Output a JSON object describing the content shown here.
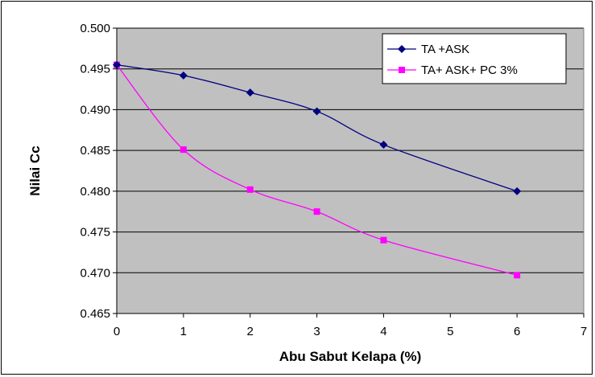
{
  "chart_data": {
    "type": "line",
    "title": "",
    "xlabel": "Abu Sabut Kelapa (%)",
    "ylabel": "Nilai Cc",
    "xlim": [
      0,
      7
    ],
    "ylim": [
      0.465,
      0.5
    ],
    "x_ticks": [
      "0",
      "1",
      "2",
      "3",
      "4",
      "5",
      "6",
      "7"
    ],
    "y_ticks": [
      "0.465",
      "0.470",
      "0.475",
      "0.480",
      "0.485",
      "0.490",
      "0.495",
      "0.500"
    ],
    "grid": "horizontal",
    "plot_background": "#c0c0c0",
    "legend_position": "top-right",
    "series": [
      {
        "name": "TA +ASK",
        "color": "#000080",
        "marker": "diamond",
        "x": [
          0,
          1,
          2,
          3,
          4,
          6
        ],
        "values": [
          0.4955,
          0.4942,
          0.4921,
          0.4898,
          0.4857,
          0.48
        ]
      },
      {
        "name": "TA+ ASK+ PC 3%",
        "color": "#ff00ff",
        "marker": "square",
        "x": [
          0,
          1,
          2,
          3,
          4,
          6
        ],
        "values": [
          0.4955,
          0.4851,
          0.4802,
          0.4775,
          0.474,
          0.4697
        ]
      }
    ]
  }
}
